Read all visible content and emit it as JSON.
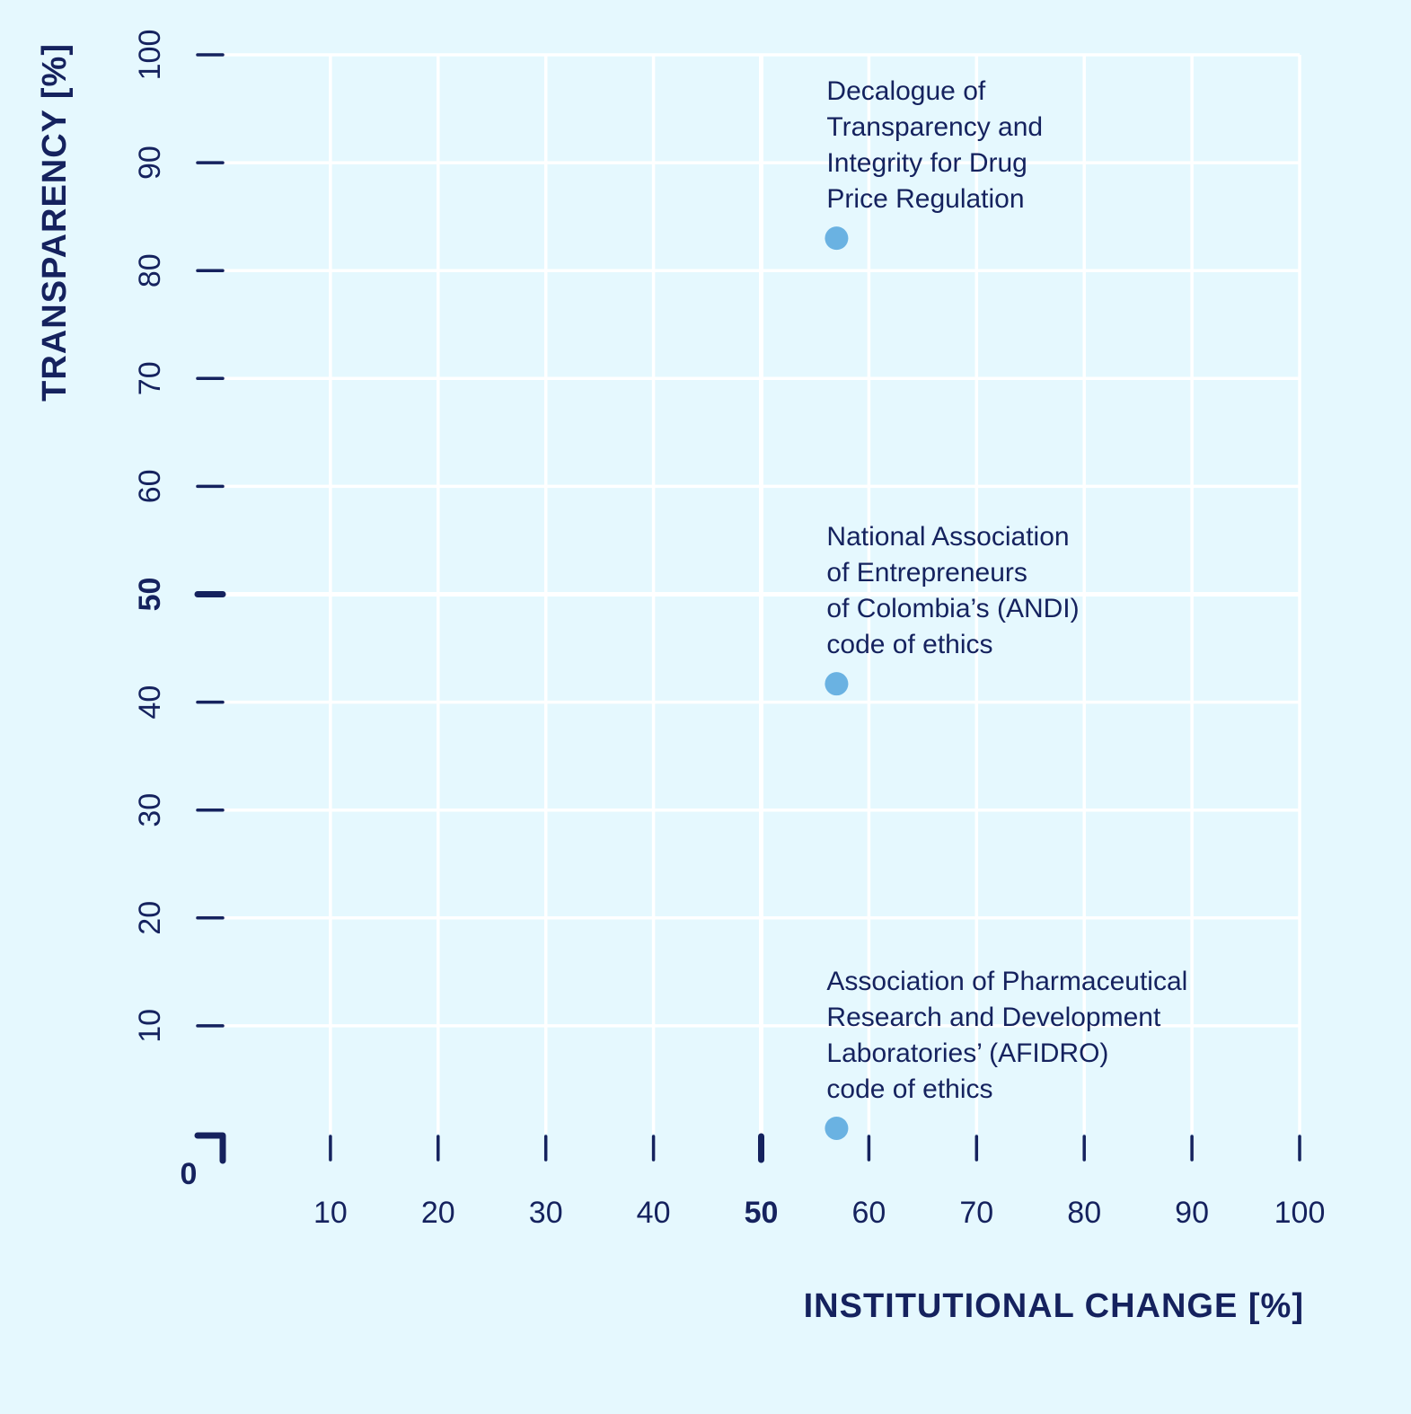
{
  "chart_data": {
    "type": "scatter",
    "xlabel": "INSTITUTIONAL CHANGE [%]",
    "ylabel": "TRANSPARENCY [%]",
    "xlim": [
      0,
      100
    ],
    "ylim": [
      0,
      100
    ],
    "origin_label": "0",
    "x_ticks": [
      "10",
      "20",
      "30",
      "40",
      "50",
      "60",
      "70",
      "80",
      "90",
      "100"
    ],
    "y_ticks": [
      "10",
      "20",
      "30",
      "40",
      "50",
      "60",
      "70",
      "80",
      "90",
      "100"
    ],
    "emphasized_tick": "50",
    "grid": true,
    "marker_color": "#6ab2e2",
    "text_color": "#15225e",
    "background_color": "#e5f8fe",
    "points": [
      {
        "x": 57,
        "y": 83,
        "label": [
          "Decalogue of",
          "Transparency and",
          "Integrity for Drug",
          "Price Regulation"
        ]
      },
      {
        "x": 57,
        "y": 41.7,
        "label": [
          "National Association",
          "of Entrepreneurs",
          "of Colombia’s (ANDI)",
          "code of ethics"
        ]
      },
      {
        "x": 57,
        "y": 0.5,
        "label": [
          "Association of Pharmaceutical",
          "Research and Development",
          "Laboratories’ (AFIDRO)",
          "code of ethics"
        ]
      }
    ]
  }
}
